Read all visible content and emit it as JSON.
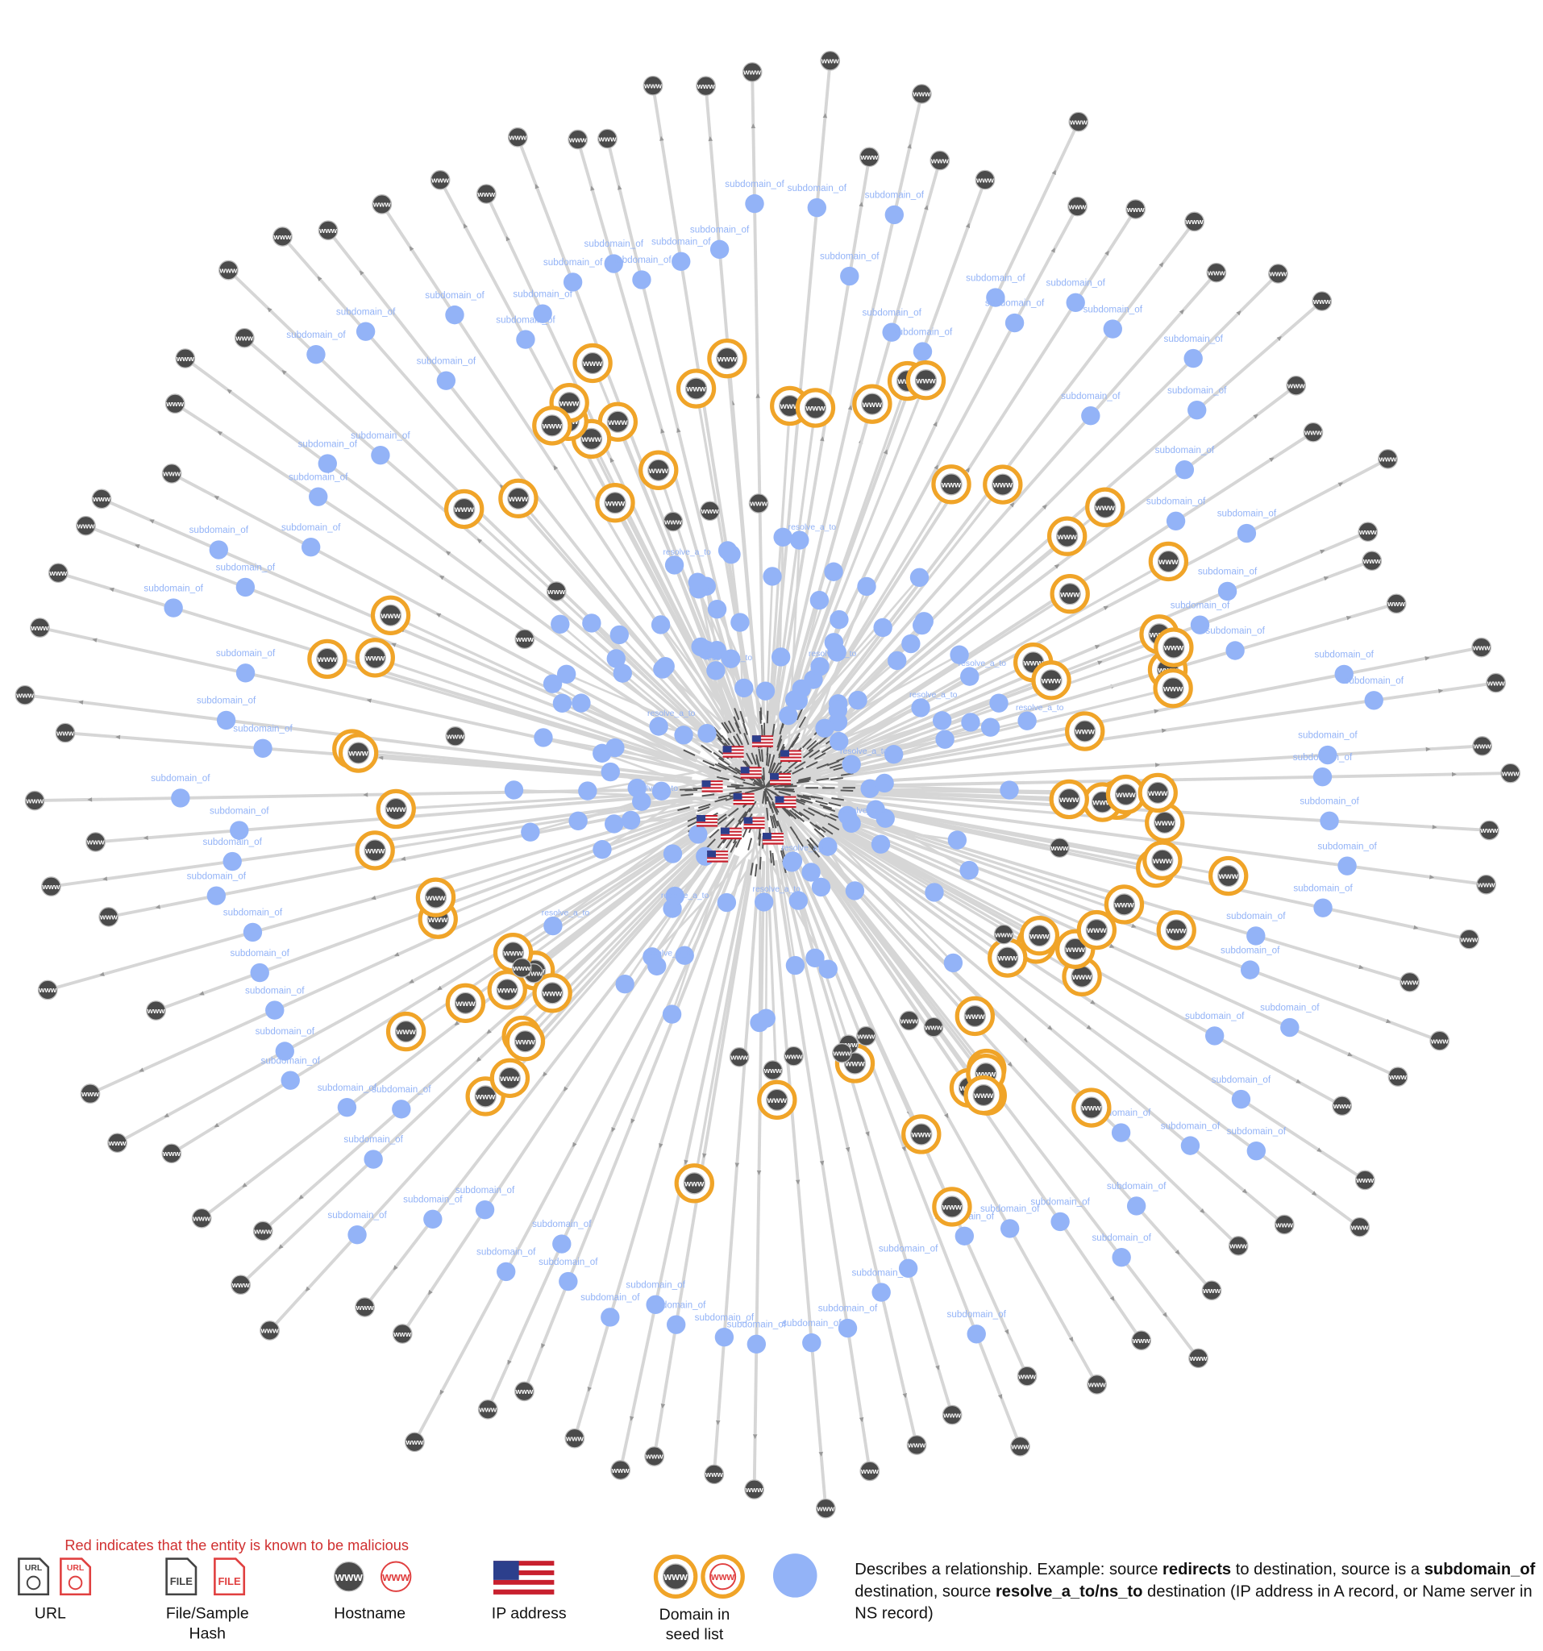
{
  "relationship_labels": [
    "subdomain_of",
    "resolve_a_to"
  ],
  "icon_labels": {
    "url": "URL",
    "file": "FILE",
    "host": "www"
  },
  "legend": {
    "note": "Red indicates that the entity is known to be malicious",
    "items": [
      {
        "lines": [
          "URL"
        ]
      },
      {
        "lines": [
          "File/Sample",
          "Hash"
        ]
      },
      {
        "lines": [
          "Hostname"
        ]
      },
      {
        "lines": [
          "IP address"
        ]
      },
      {
        "lines": [
          "Domain in",
          "seed list"
        ]
      }
    ],
    "description": [
      {
        "text": "Describes a relationship. Example: source ",
        "bold": false
      },
      {
        "text": "redirects",
        "bold": true
      },
      {
        "text": " to destination, source is a ",
        "bold": false
      },
      {
        "text": "subdomain_of",
        "bold": true
      },
      {
        "text": " destination, source ",
        "bold": false
      },
      {
        "text": "resolve_a_to/ns_to",
        "bold": true
      },
      {
        "text": " destination (IP address in A record, or Name server in NS record)",
        "bold": false
      }
    ]
  }
}
